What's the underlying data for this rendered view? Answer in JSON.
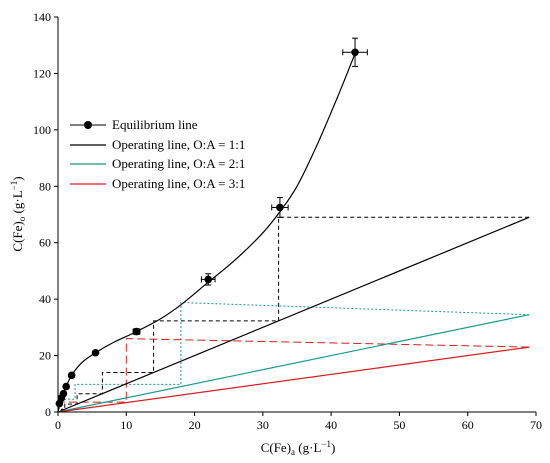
{
  "chart_data": {
    "type": "line",
    "title": "",
    "xlabel": "C(Fe)",
    "xlabel_sub": "a",
    "xlabel_unit": " (g·L",
    "xlabel_exp": "−1",
    "xlabel_close": ")",
    "ylabel": "C(Fe)",
    "ylabel_sub": "o",
    "ylabel_unit": " (g·L",
    "ylabel_exp": "−1",
    "ylabel_close": ")",
    "xlim": [
      0,
      70
    ],
    "ylim": [
      0,
      140
    ],
    "xticks": [
      0,
      10,
      20,
      30,
      40,
      50,
      60,
      70
    ],
    "yticks": [
      0,
      20,
      40,
      60,
      80,
      100,
      120,
      140
    ],
    "grid": false,
    "legend_position": "left-middle",
    "colors": {
      "equilibrium": "#000000",
      "op_1_1": "#000000",
      "op_2_1": "#1a9a8a",
      "op_3_1": "#d62020"
    },
    "series": [
      {
        "name": "Equilibrium line",
        "kind": "markers+curve",
        "x": [
          0.2,
          0.5,
          0.8,
          1.2,
          2.0,
          5.5,
          11.5,
          22.0,
          32.5,
          43.5
        ],
        "y": [
          3,
          5,
          6.5,
          9,
          13,
          21,
          28.5,
          47,
          72.5,
          127.5
        ],
        "x_err": [
          0,
          0,
          0,
          0,
          0,
          0,
          0.5,
          1.0,
          1.2,
          1.8
        ],
        "y_err": [
          0,
          0,
          0,
          0,
          0,
          0,
          1.0,
          2.0,
          3.5,
          5.0
        ],
        "curve_x": [
          0,
          0.5,
          1.0,
          2.0,
          3.5,
          5.5,
          8.0,
          11.5,
          15.0,
          18.0,
          22.0,
          26.0,
          30.0,
          32.5,
          35.0,
          38.0,
          41.0,
          43.5
        ],
        "curve_y": [
          0,
          5.0,
          8.0,
          13.0,
          17.5,
          21.0,
          24.5,
          28.5,
          33.0,
          38.0,
          46.0,
          54.0,
          63.5,
          71.0,
          80.0,
          95.0,
          112.0,
          127.0
        ]
      },
      {
        "name": "Operating line, O:A = 1:1",
        "kind": "line",
        "x": [
          0,
          69
        ],
        "y": [
          0,
          69
        ]
      },
      {
        "name": "Operating line, O:A = 2:1",
        "kind": "line",
        "x": [
          0,
          69
        ],
        "y": [
          0,
          34.5
        ]
      },
      {
        "name": "Operating line, O:A = 3:1",
        "kind": "line",
        "x": [
          0,
          69
        ],
        "y": [
          0,
          23
        ]
      }
    ],
    "stage_steps": [
      {
        "series": "Operating line, O:A = 1:1",
        "color": "#000000",
        "dash": "4,3",
        "points": [
          [
            69,
            69
          ],
          [
            32.3,
            69
          ],
          [
            32.3,
            32.3
          ],
          [
            14,
            32.3
          ],
          [
            14,
            14
          ],
          [
            6.5,
            14
          ],
          [
            6.5,
            6.5
          ],
          [
            2.8,
            6.5
          ],
          [
            2.8,
            2.8
          ],
          [
            1.0,
            2.8
          ],
          [
            1.0,
            1.0
          ],
          [
            0.5,
            1.0
          ],
          [
            0.5,
            0.5
          ]
        ]
      },
      {
        "series": "Operating line, O:A = 2:1",
        "color": "#1a9a8a",
        "dash": "2,2",
        "points": [
          [
            69,
            34.5
          ],
          [
            18,
            38.8
          ],
          [
            18,
            9.8
          ],
          [
            2.5,
            9.8
          ],
          [
            2.5,
            4.5
          ],
          [
            0.5,
            4.5
          ]
        ]
      },
      {
        "series": "Operating line, O:A = 3:1",
        "color": "#d62020",
        "dash": "8,4",
        "points": [
          [
            69,
            23
          ],
          [
            10,
            26
          ],
          [
            10,
            3.5
          ],
          [
            0.5,
            3.5
          ]
        ]
      }
    ]
  }
}
